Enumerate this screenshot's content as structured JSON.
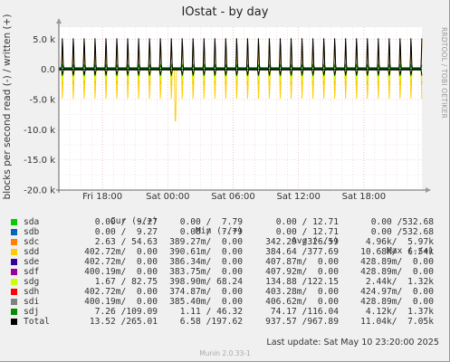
{
  "title": "IOstat - by day",
  "side_text": "RRDTOOL / TOBI OETIKER",
  "ylabel": "blocks per second read (-) / written (+)",
  "footer": {
    "last_update": "Last update:  Sat May 10 23:20:00 2025",
    "munin": "Munin 2.0.33-1"
  },
  "legend": {
    "headers": {
      "cur": "Cur (-/+)",
      "min": "Min (-/+)",
      "avg": "Avg (-/+)",
      "max": "Max (-/+)"
    },
    "rows": [
      {
        "name": "sda",
        "color": "#00cc00",
        "cur": "0.00 /  9.27",
        "min": "0.00 /  7.79",
        "avg": "0.00 / 12.71",
        "max": "0.00 /532.68"
      },
      {
        "name": "sdb",
        "color": "#0066b3",
        "cur": "0.00 /  9.27",
        "min": "0.00 /  7.79",
        "avg": "0.00 / 12.71",
        "max": "0.00 /532.68"
      },
      {
        "name": "sdc",
        "color": "#ff8000",
        "cur": "2.63 / 54.63",
        "min": "389.27m/  0.00",
        "avg": "342.29 /326.59",
        "max": "4.96k/  5.97k"
      },
      {
        "name": "sdd",
        "color": "#ffcc00",
        "cur": "402.72m/  0.00",
        "min": "390.61m/  0.00",
        "avg": "384.64 /377.69",
        "max": "10.68k/  6.54k"
      },
      {
        "name": "sde",
        "color": "#330099",
        "cur": "402.72m/  0.00",
        "min": "386.34m/  0.00",
        "avg": "407.87m/  0.00",
        "max": "428.89m/  0.00"
      },
      {
        "name": "sdf",
        "color": "#990099",
        "cur": "400.19m/  0.00",
        "min": "383.75m/  0.00",
        "avg": "407.92m/  0.00",
        "max": "428.89m/  0.00"
      },
      {
        "name": "sdg",
        "color": "#ccff00",
        "cur": "1.67 / 82.75",
        "min": "398.90m/ 68.24",
        "avg": "134.88 /122.15",
        "max": "2.44k/  1.32k"
      },
      {
        "name": "sdh",
        "color": "#ff0000",
        "cur": "402.72m/  0.00",
        "min": "374.87m/  0.00",
        "avg": "403.28m/  0.00",
        "max": "424.97m/  0.00"
      },
      {
        "name": "sdi",
        "color": "#808080",
        "cur": "400.19m/  0.00",
        "min": "385.40m/  0.00",
        "avg": "406.62m/  0.00",
        "max": "428.89m/  0.00"
      },
      {
        "name": "sdj",
        "color": "#008f00",
        "cur": "7.26 /109.09",
        "min": "1.11 / 46.32",
        "avg": "74.17 /116.04",
        "max": "4.12k/  1.37k"
      },
      {
        "name": "Total",
        "color": "#000000",
        "cur": "13.52 /265.01",
        "min": "6.58 /197.62",
        "avg": "937.57 /967.89",
        "max": "11.04k/  7.05k"
      }
    ]
  },
  "chart_data": {
    "type": "line",
    "ylabel": "blocks per second read (-) / written (+)",
    "ylim": [
      -20000,
      7000
    ],
    "yticks": [
      {
        "v": 5000,
        "label": "5.0 k"
      },
      {
        "v": 0,
        "label": "0.0"
      },
      {
        "v": -5000,
        "label": "-5.0 k"
      },
      {
        "v": -10000,
        "label": "-10.0 k"
      },
      {
        "v": -15000,
        "label": "-15.0 k"
      },
      {
        "v": -20000,
        "label": "-20.0 k"
      }
    ],
    "xlim": [
      "Fri 14:00",
      "Sat 23:20"
    ],
    "xlim_hours": [
      14.0,
      47.33
    ],
    "xticks": [
      {
        "h": 18,
        "label": "Fri 18:00"
      },
      {
        "h": 24,
        "label": "Sat 00:00"
      },
      {
        "h": 30,
        "label": "Sat 06:00"
      },
      {
        "h": 36,
        "label": "Sat 12:00"
      },
      {
        "h": 42,
        "label": "Sat 18:00"
      }
    ],
    "grid": true,
    "spike_period_hours": 1.0,
    "series": [
      {
        "name": "Total",
        "color": "#000000",
        "write_base": 250,
        "write_spike": 5600,
        "read_base": -100,
        "read_spike": -900
      },
      {
        "name": "sdc",
        "color": "#ff8000",
        "write_base": 40,
        "write_spike": 4800,
        "read_base": -50,
        "read_spike": -2800
      },
      {
        "name": "sdd",
        "color": "#ffcc00",
        "write_base": 0,
        "write_spike": 5200,
        "read_base": -50,
        "read_spike": -5500,
        "read_peak": -10680
      },
      {
        "name": "sdg",
        "color": "#ccff00",
        "write_base": 80,
        "write_spike": 900,
        "read_base": -30,
        "read_spike": -2200
      },
      {
        "name": "sdj",
        "color": "#008f00",
        "write_base": 100,
        "write_spike": 700,
        "read_base": -50,
        "read_spike": -1200
      }
    ]
  }
}
